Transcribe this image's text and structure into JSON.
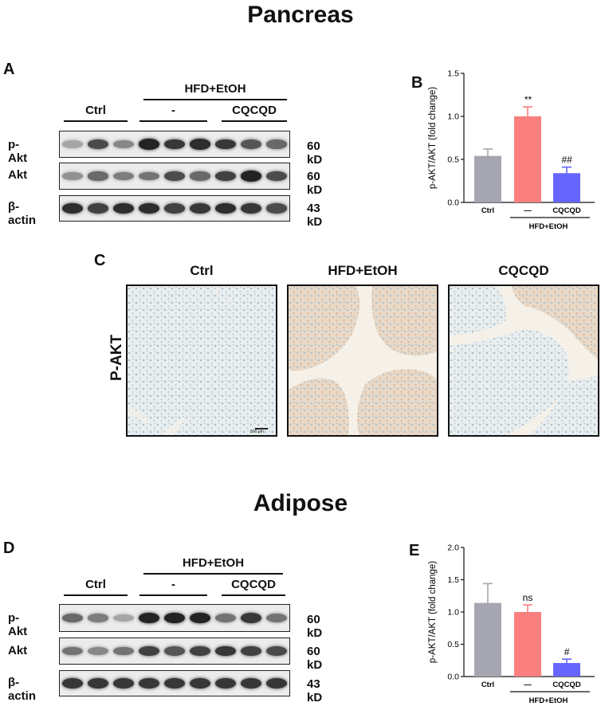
{
  "sections": {
    "pancreas_title": "Pancreas",
    "adipose_title": "Adipose"
  },
  "panels": {
    "A": "A",
    "B": "B",
    "C": "C",
    "D": "D",
    "E": "E"
  },
  "blot_headers": {
    "hfd": "HFD+EtOH",
    "ctrl": "Ctrl",
    "minus": "-",
    "cqcqd": "CQCQD"
  },
  "blot_rows": [
    {
      "label": "p-Akt",
      "kd": "60 kD"
    },
    {
      "label": "Akt",
      "kd": "60 kD"
    },
    {
      "label": "β-actin",
      "kd": "43 kD"
    }
  ],
  "band_intensity": {
    "pancreas": {
      "p-Akt": [
        0.3,
        0.75,
        0.45,
        0.95,
        0.85,
        0.9,
        0.85,
        0.7,
        0.6
      ],
      "Akt": [
        0.4,
        0.6,
        0.5,
        0.55,
        0.75,
        0.6,
        0.8,
        0.95,
        0.75
      ],
      "β-actin": [
        0.9,
        0.8,
        0.9,
        0.9,
        0.8,
        0.85,
        0.9,
        0.85,
        0.75
      ]
    },
    "adipose": {
      "p-Akt": [
        0.6,
        0.5,
        0.3,
        0.95,
        0.95,
        0.95,
        0.55,
        0.85,
        0.55
      ],
      "Akt": [
        0.55,
        0.45,
        0.55,
        0.8,
        0.7,
        0.8,
        0.85,
        0.8,
        0.75
      ],
      "β-actin": [
        0.85,
        0.85,
        0.85,
        0.85,
        0.85,
        0.85,
        0.85,
        0.85,
        0.85
      ]
    }
  },
  "ihc": {
    "row_label": "P-AKT",
    "columns": [
      "Ctrl",
      "HFD+EtOH",
      "CQCQD"
    ],
    "scale_bar": "500 μm"
  },
  "chart_data": [
    {
      "panel": "B",
      "type": "bar",
      "categories": [
        "Ctrl",
        "—",
        "CQCQD"
      ],
      "group_label": "HFD+EtOH",
      "values": [
        0.54,
        1.0,
        0.34
      ],
      "errors": [
        0.08,
        0.11,
        0.07
      ],
      "significance": [
        "",
        "**",
        "##"
      ],
      "colors": [
        "#a6a6b0",
        "#f97f7f",
        "#6666ff"
      ],
      "ylabel": "p-AKT/AKT (fold change)",
      "ylim": [
        0,
        1.5
      ],
      "yticks": [
        "0.0",
        "0.5",
        "1.0",
        "1.5"
      ]
    },
    {
      "panel": "E",
      "type": "bar",
      "categories": [
        "Ctrl",
        "—",
        "CQCQD"
      ],
      "group_label": "HFD+EtOH",
      "values": [
        1.14,
        1.0,
        0.21
      ],
      "errors": [
        0.3,
        0.11,
        0.06
      ],
      "significance": [
        "",
        "ns",
        "#"
      ],
      "colors": [
        "#a6a6b0",
        "#f97f7f",
        "#6666ff"
      ],
      "ylabel": "p-AKT/AKT (fold change)",
      "ylim": [
        0,
        2.0
      ],
      "yticks": [
        "0.0",
        "0.5",
        "1.0",
        "1.5",
        "2.0"
      ]
    }
  ]
}
